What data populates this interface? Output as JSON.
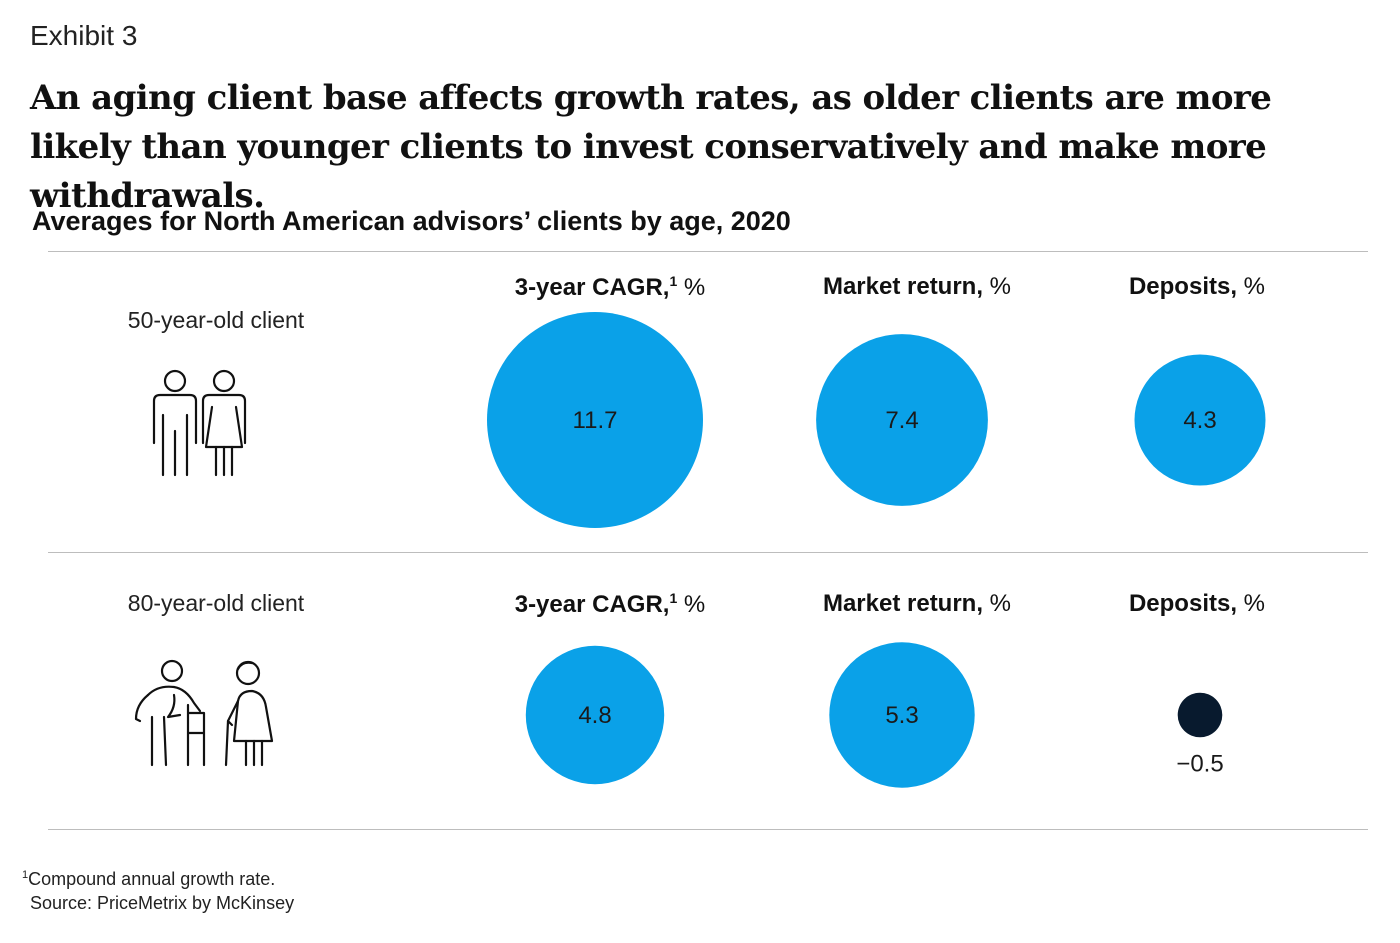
{
  "exhibit_label": "Exhibit 3",
  "headline": "An aging client base affects growth rates, as older clients are more likely than younger clients to invest conservatively and make more withdrawals.",
  "subtitle": "Averages for North American advisors’ clients by age, 2020",
  "colors": {
    "positive": "#0aa1e8",
    "negative": "#081a2e",
    "rule": "#bdbdbd"
  },
  "metrics": [
    {
      "name": "3-year CAGR,",
      "sup": "1",
      "unit": " %"
    },
    {
      "name": "Market return,",
      "sup": "",
      "unit": " %"
    },
    {
      "name": "Deposits,",
      "sup": "",
      "unit": " %"
    }
  ],
  "rows": [
    {
      "label": "50-year-old client",
      "icon": "couple-standing-icon"
    },
    {
      "label": "80-year-old client",
      "icon": "elderly-couple-walker-icon"
    }
  ],
  "chart_data": {
    "type": "bubble",
    "title": "Averages for North American advisors’ clients by age, 2020",
    "categories": [
      "3-year CAGR, %",
      "Market return, %",
      "Deposits, %"
    ],
    "series": [
      {
        "name": "50-year-old client",
        "values": [
          11.7,
          7.4,
          4.3
        ],
        "labels": [
          "11.7",
          "7.4",
          "4.3"
        ]
      },
      {
        "name": "80-year-old client",
        "values": [
          4.8,
          5.3,
          -0.5
        ],
        "labels": [
          "4.8",
          "5.3",
          "−0.5"
        ]
      }
    ],
    "size_encoding": "circle area proportional to value",
    "negative_color": "#081a2e",
    "positive_color": "#0aa1e8"
  },
  "footnote": {
    "marker": "1",
    "text": "Compound annual growth rate."
  },
  "source": "Source: PriceMetrix by McKinsey"
}
